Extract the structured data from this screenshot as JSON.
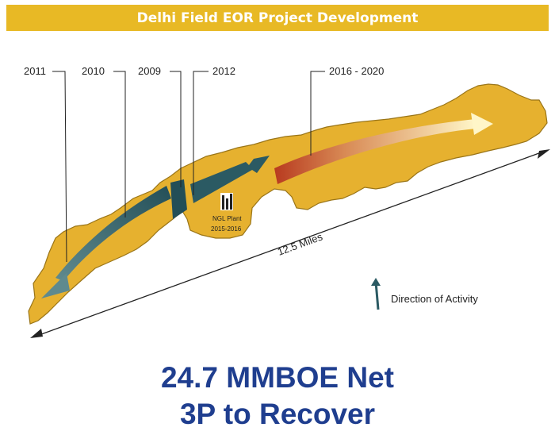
{
  "title": "Delhi Field EOR Project Development",
  "timeline": [
    "2011",
    "2010",
    "2009",
    "2012",
    "2016 - 2020"
  ],
  "plant": {
    "line1": "NGL Plant",
    "line2": "2015-2016"
  },
  "distance_label": "12.5 Miles",
  "legend_label": "Direction of Activity",
  "headline": {
    "line1": "24.7 MMBOE Net",
    "line2": "3P to Recover"
  },
  "colors": {
    "banner": "#e8b925",
    "field": "#e6b12f",
    "arrow_dark": "#2b5a63",
    "arrow_red": "#b83a1f",
    "headline": "#1f3e8f"
  }
}
